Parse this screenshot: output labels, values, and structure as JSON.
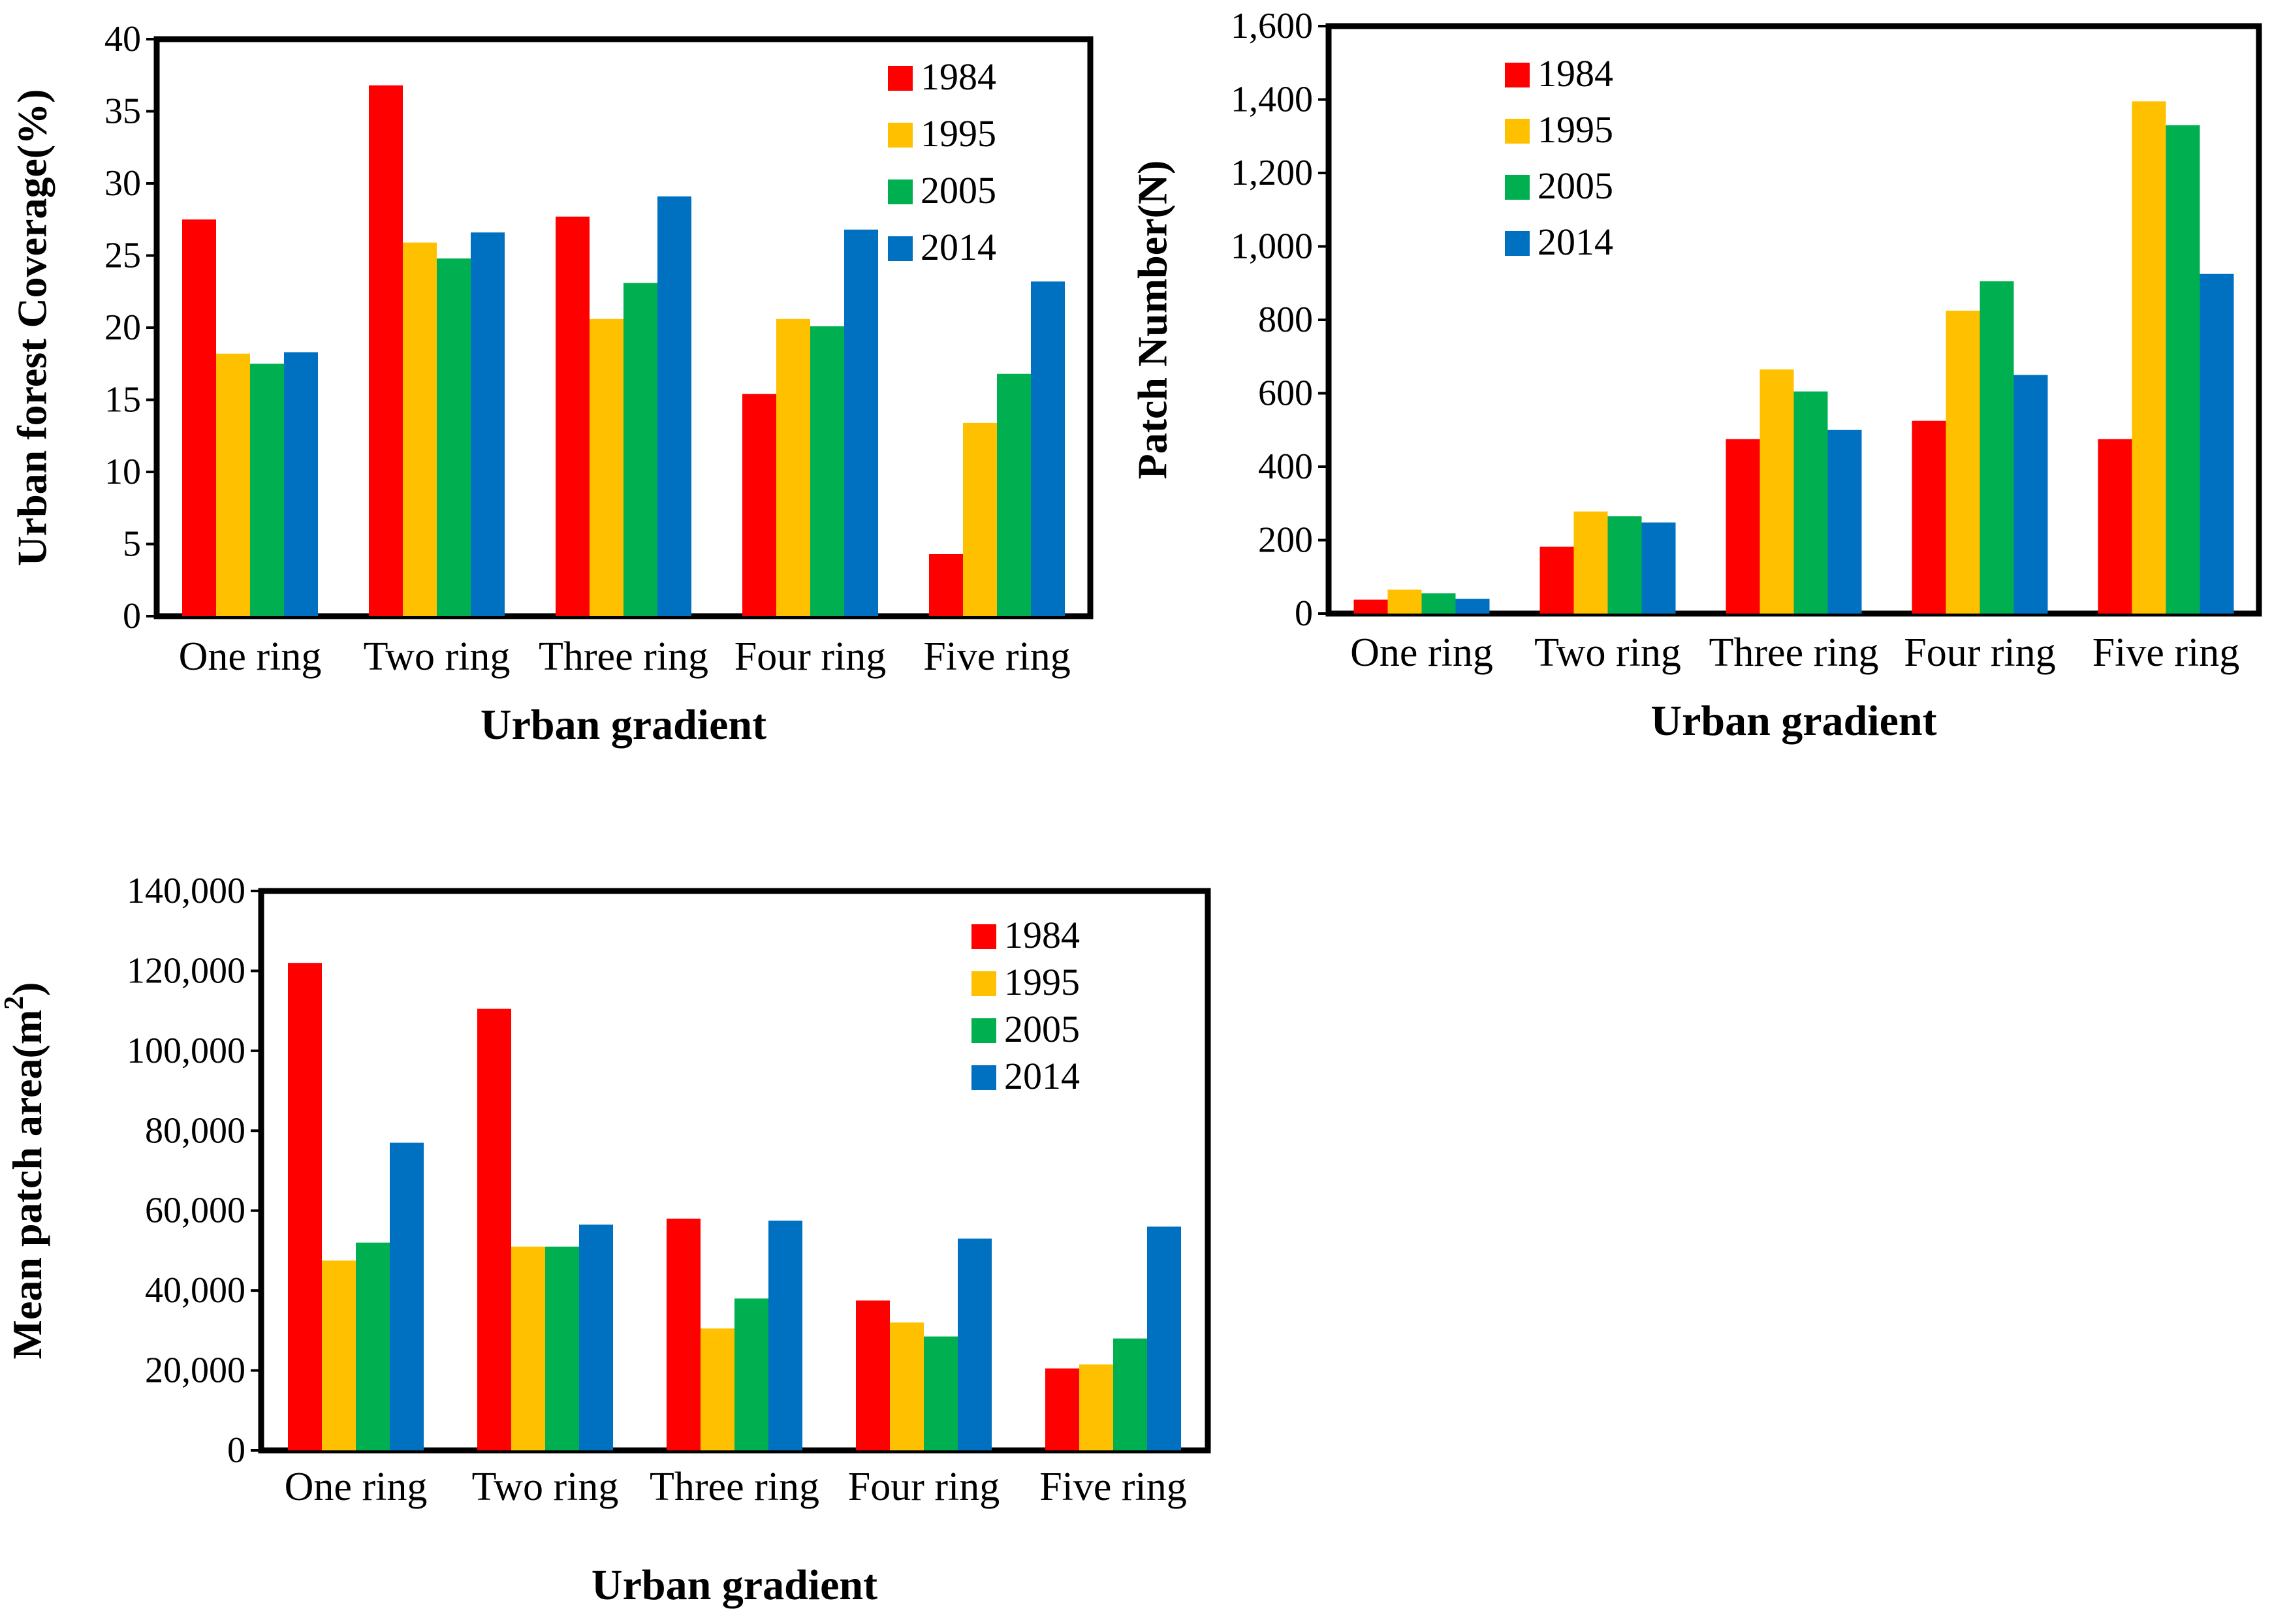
{
  "chart_data": [
    {
      "type": "bar",
      "title": "",
      "xlabel": "Urban gradient",
      "ylabel": "Urban forest Coverage(%)",
      "ylim": [
        0,
        40
      ],
      "ytick_labels": [
        "0",
        "5",
        "10",
        "15",
        "20",
        "25",
        "30",
        "35",
        "40"
      ],
      "categories": [
        "One ring",
        "Two ring",
        "Three ring",
        "Four ring",
        "Five ring"
      ],
      "series": [
        {
          "name": "1984",
          "values": [
            27.5,
            36.8,
            27.7,
            15.4,
            4.3
          ]
        },
        {
          "name": "1995",
          "values": [
            18.2,
            25.9,
            20.6,
            20.6,
            13.4
          ]
        },
        {
          "name": "2005",
          "values": [
            17.5,
            24.8,
            23.1,
            20.1,
            16.8
          ]
        },
        {
          "name": "2014",
          "values": [
            18.3,
            26.6,
            29.1,
            26.8,
            23.2
          ]
        }
      ],
      "legend_position": "top-right"
    },
    {
      "type": "bar",
      "title": "",
      "xlabel": "Urban gradient",
      "ylabel": "Patch Number(N)",
      "ylim": [
        0,
        1600
      ],
      "ytick_labels": [
        "0",
        "200",
        "400",
        "600",
        "800",
        "1,000",
        "1,200",
        "1,400",
        "1,600"
      ],
      "categories": [
        "One ring",
        "Two ring",
        "Three ring",
        "Four ring",
        "Five ring"
      ],
      "series": [
        {
          "name": "1984",
          "values": [
            38,
            182,
            475,
            525,
            475
          ]
        },
        {
          "name": "1995",
          "values": [
            65,
            278,
            665,
            825,
            1395
          ]
        },
        {
          "name": "2005",
          "values": [
            55,
            265,
            605,
            905,
            1330
          ]
        },
        {
          "name": "2014",
          "values": [
            40,
            248,
            500,
            650,
            925
          ]
        }
      ],
      "legend_position": "top-left"
    },
    {
      "type": "bar",
      "title": "",
      "xlabel": "Urban gradient",
      "ylabel": "Mean patch area(m2)",
      "ylabel_parts": [
        "Mean patch area(m",
        "2",
        ")"
      ],
      "ylim": [
        0,
        140000
      ],
      "ytick_labels": [
        "0",
        "20,000",
        "40,000",
        "60,000",
        "80,000",
        "100,000",
        "120,000",
        "140,000"
      ],
      "categories": [
        "One ring",
        "Two ring",
        "Three ring",
        "Four ring",
        "Five ring"
      ],
      "series": [
        {
          "name": "1984",
          "values": [
            122000,
            110500,
            58000,
            37500,
            20500
          ]
        },
        {
          "name": "1995",
          "values": [
            47500,
            51000,
            30500,
            32000,
            21500
          ]
        },
        {
          "name": "2005",
          "values": [
            52000,
            51000,
            38000,
            28500,
            28000
          ]
        },
        {
          "name": "2014",
          "values": [
            77000,
            56500,
            57500,
            53000,
            56000
          ]
        }
      ],
      "legend_position": "top-right"
    }
  ],
  "colors": {
    "1984": "#FF0000",
    "1995": "#FFC000",
    "2005": "#00B050",
    "2014": "#0070C0"
  }
}
